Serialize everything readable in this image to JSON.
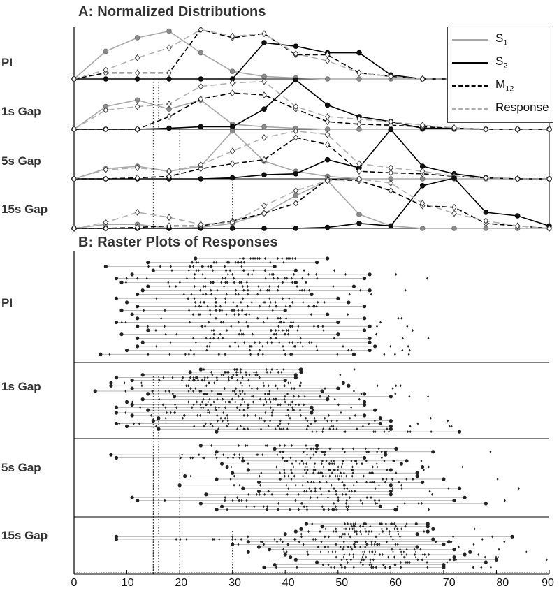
{
  "panel_a": {
    "title": "A: Normalized Distributions"
  },
  "panel_b": {
    "title": "B: Raster Plots of Responses"
  },
  "row_labels": [
    "PI",
    "1s Gap",
    "5s Gap",
    "15s Gap"
  ],
  "legend": [
    {
      "label": "S",
      "sub": "1",
      "style": "solid",
      "color": "#a8a8a8"
    },
    {
      "label": "S",
      "sub": "2",
      "style": "solid",
      "color": "#000000"
    },
    {
      "label": "M",
      "sub": "12",
      "style": "dashed",
      "color": "#000000"
    },
    {
      "label": "Response",
      "sub": "",
      "style": "dashed",
      "color": "#b0b0b0"
    }
  ],
  "x_ticks": [
    "0",
    "10",
    "20",
    "30",
    "40",
    "50",
    "60",
    "70",
    "80",
    "90"
  ],
  "chart_data": [
    {
      "type": "line",
      "title": "A: Normalized Distributions",
      "x": [
        0,
        6,
        12,
        18,
        24,
        30,
        36,
        42,
        48,
        54,
        60,
        66,
        72,
        78,
        84,
        90
      ],
      "xlim": [
        0,
        90
      ],
      "panels": [
        {
          "name": "PI",
          "series": [
            {
              "name": "S1",
              "values": [
                0,
                0.55,
                0.82,
                0.95,
                0.52,
                0.15,
                0.05,
                0.02,
                0,
                0,
                0,
                0,
                0,
                0,
                0,
                0
              ]
            },
            {
              "name": "S2",
              "values": [
                0,
                0,
                0,
                0,
                0,
                0,
                0.72,
                0.65,
                0.52,
                0.52,
                0.08,
                0,
                0,
                0,
                0,
                0
              ]
            },
            {
              "name": "M12",
              "values": [
                0,
                0.12,
                0.12,
                0.12,
                0.98,
                0.82,
                0.9,
                0.48,
                0.48,
                0.12,
                0.05,
                0,
                0,
                0,
                0,
                0
              ]
            },
            {
              "name": "Response",
              "values": [
                0,
                0.18,
                0.42,
                0.62,
                0.98,
                0.85,
                0.9,
                0.5,
                0.36,
                0.12,
                0.05,
                0,
                0,
                0,
                0,
                0
              ]
            }
          ]
        },
        {
          "name": "1s Gap",
          "series": [
            {
              "name": "S1",
              "values": [
                0,
                0.45,
                0.58,
                0.4,
                0.58,
                0.1,
                0.05,
                0.02,
                0,
                0,
                0,
                0,
                0,
                0,
                0,
                0
              ]
            },
            {
              "name": "S2",
              "values": [
                0,
                0,
                0,
                0.02,
                0.05,
                0.05,
                0.4,
                0.98,
                0.48,
                0.25,
                0.15,
                0.02,
                0.02,
                0,
                0,
                0
              ]
            },
            {
              "name": "M12",
              "values": [
                0,
                0,
                0,
                0.25,
                0.6,
                0.72,
                0.68,
                0.4,
                0.15,
                0.1,
                0.08,
                0.05,
                0.02,
                0,
                0,
                0
              ]
            },
            {
              "name": "Response",
              "values": [
                0,
                0.38,
                0.45,
                0.5,
                0.85,
                0.92,
                0.95,
                0.45,
                0.25,
                0.2,
                0.15,
                0.08,
                0.03,
                0,
                0,
                0
              ]
            }
          ]
        },
        {
          "name": "5s Gap",
          "series": [
            {
              "name": "S1",
              "values": [
                0,
                0.2,
                0.25,
                0.15,
                0.25,
                0.95,
                0.35,
                0.15,
                0.05,
                0,
                0,
                0,
                0,
                0,
                0,
                0
              ]
            },
            {
              "name": "S2",
              "values": [
                0,
                0,
                0,
                0,
                0,
                0.02,
                0.08,
                0.1,
                0.38,
                0.22,
                0.98,
                0.25,
                0.1,
                0.02,
                0,
                0
              ]
            },
            {
              "name": "M12",
              "values": [
                0,
                0,
                0.02,
                0.05,
                0.2,
                0.3,
                0.38,
                0.82,
                0.68,
                0.15,
                0.12,
                0.1,
                0.05,
                0.02,
                0,
                0
              ]
            },
            {
              "name": "Response",
              "values": [
                0,
                0.18,
                0.22,
                0.15,
                0.28,
                0.55,
                0.82,
                0.95,
                0.88,
                0.3,
                0.22,
                0.15,
                0.05,
                0.02,
                0,
                0
              ]
            }
          ]
        },
        {
          "name": "15s Gap",
          "series": [
            {
              "name": "S1",
              "values": [
                0,
                0.08,
                0.08,
                0,
                0.02,
                0.1,
                0.3,
                0.65,
                0.95,
                0.28,
                0.05,
                0,
                0,
                0,
                0,
                0
              ]
            },
            {
              "name": "S2",
              "values": [
                0,
                0,
                0,
                0,
                0,
                0,
                0,
                0,
                0.02,
                0.1,
                0.05,
                0.85,
                1.0,
                0.32,
                0.25,
                0.05
              ]
            },
            {
              "name": "M12",
              "values": [
                0,
                0,
                0.02,
                0.05,
                0.05,
                0.15,
                0.3,
                0.5,
                0.98,
                0.95,
                0.75,
                0.45,
                0.42,
                0.1,
                0.05,
                0
              ]
            },
            {
              "name": "Response",
              "values": [
                0,
                0.12,
                0.32,
                0.22,
                0.08,
                0.12,
                0.45,
                0.75,
                0.95,
                0.98,
                0.9,
                0.5,
                0.3,
                0.15,
                0.05,
                0
              ]
            }
          ]
        }
      ]
    },
    {
      "type": "scatter",
      "title": "B: Raster Plots of Responses",
      "xlim": [
        0,
        90
      ],
      "xticks": [
        0,
        10,
        20,
        30,
        40,
        50,
        60,
        70,
        80,
        90
      ],
      "reference_lines": {
        "1s Gap": [
          15,
          16
        ],
        "5s Gap": [
          15,
          20
        ],
        "15s Gap": [
          15,
          30
        ]
      },
      "panels": [
        {
          "name": "PI",
          "trials": [
            [
              23,
              48
            ],
            [
              14,
              46
            ],
            [
              6,
              38
            ],
            [
              15,
              42
            ],
            [
              11,
              56
            ],
            [
              8,
              55
            ],
            [
              9,
              42
            ],
            [
              14,
              53
            ],
            [
              13,
              56
            ],
            [
              12,
              45
            ],
            [
              8,
              50
            ],
            [
              10,
              52
            ],
            [
              12,
              55
            ],
            [
              9,
              40
            ],
            [
              11,
              48
            ],
            [
              12,
              55
            ],
            [
              8,
              50
            ],
            [
              12,
              56
            ],
            [
              14,
              55
            ],
            [
              9,
              50
            ],
            [
              12,
              56
            ],
            [
              13,
              56
            ],
            [
              12,
              57
            ],
            [
              10,
              56
            ],
            [
              5,
              53
            ]
          ]
        },
        {
          "name": "1s Gap",
          "trials": [
            [
              24,
              43
            ],
            [
              22,
              43
            ],
            [
              13,
              42
            ],
            [
              8,
              42
            ],
            [
              11,
              40
            ],
            [
              7,
              51
            ],
            [
              7,
              52
            ],
            [
              11,
              50
            ],
            [
              4,
              47
            ],
            [
              14,
              55
            ],
            [
              19,
              60
            ],
            [
              13,
              48
            ],
            [
              10,
              55
            ],
            [
              11,
              55
            ],
            [
              8,
              45
            ],
            [
              14,
              57
            ],
            [
              8,
              45
            ],
            [
              11,
              55
            ],
            [
              16,
              58
            ],
            [
              15,
              60
            ],
            [
              8,
              58
            ],
            [
              10,
              60
            ],
            [
              16,
              60
            ],
            [
              27,
              73
            ]
          ]
        },
        {
          "name": "5s Gap",
          "trials": [
            [
              24,
              46
            ],
            [
              38,
              61
            ],
            [
              27,
              68
            ],
            [
              7,
              59
            ],
            [
              8,
              55
            ],
            [
              32,
              63
            ],
            [
              28,
              62
            ],
            [
              29,
              66
            ],
            [
              33,
              60
            ],
            [
              30,
              65
            ],
            [
              21,
              65
            ],
            [
              27,
              70
            ],
            [
              35,
              66
            ],
            [
              20,
              60
            ],
            [
              32,
              73
            ],
            [
              35,
              60
            ],
            [
              25,
              60
            ],
            [
              11,
              74
            ],
            [
              12,
              72
            ],
            [
              24,
              78
            ],
            [
              28,
              58
            ],
            [
              27,
              61
            ]
          ]
        },
        {
          "name": "15s Gap",
          "trials": [
            [
              44,
              67
            ],
            [
              47,
              67
            ],
            [
              43,
              68
            ],
            [
              42,
              67
            ],
            [
              40,
              65
            ],
            [
              8,
              83
            ],
            [
              8,
              68
            ],
            [
              33,
              71
            ],
            [
              30,
              70
            ],
            [
              35,
              65
            ],
            [
              37,
              72
            ],
            [
              33,
              75
            ],
            [
              40,
              74
            ],
            [
              41,
              72
            ],
            [
              42,
              80
            ],
            [
              46,
              78
            ],
            [
              38,
              70
            ],
            [
              36,
              70
            ]
          ]
        }
      ]
    }
  ]
}
